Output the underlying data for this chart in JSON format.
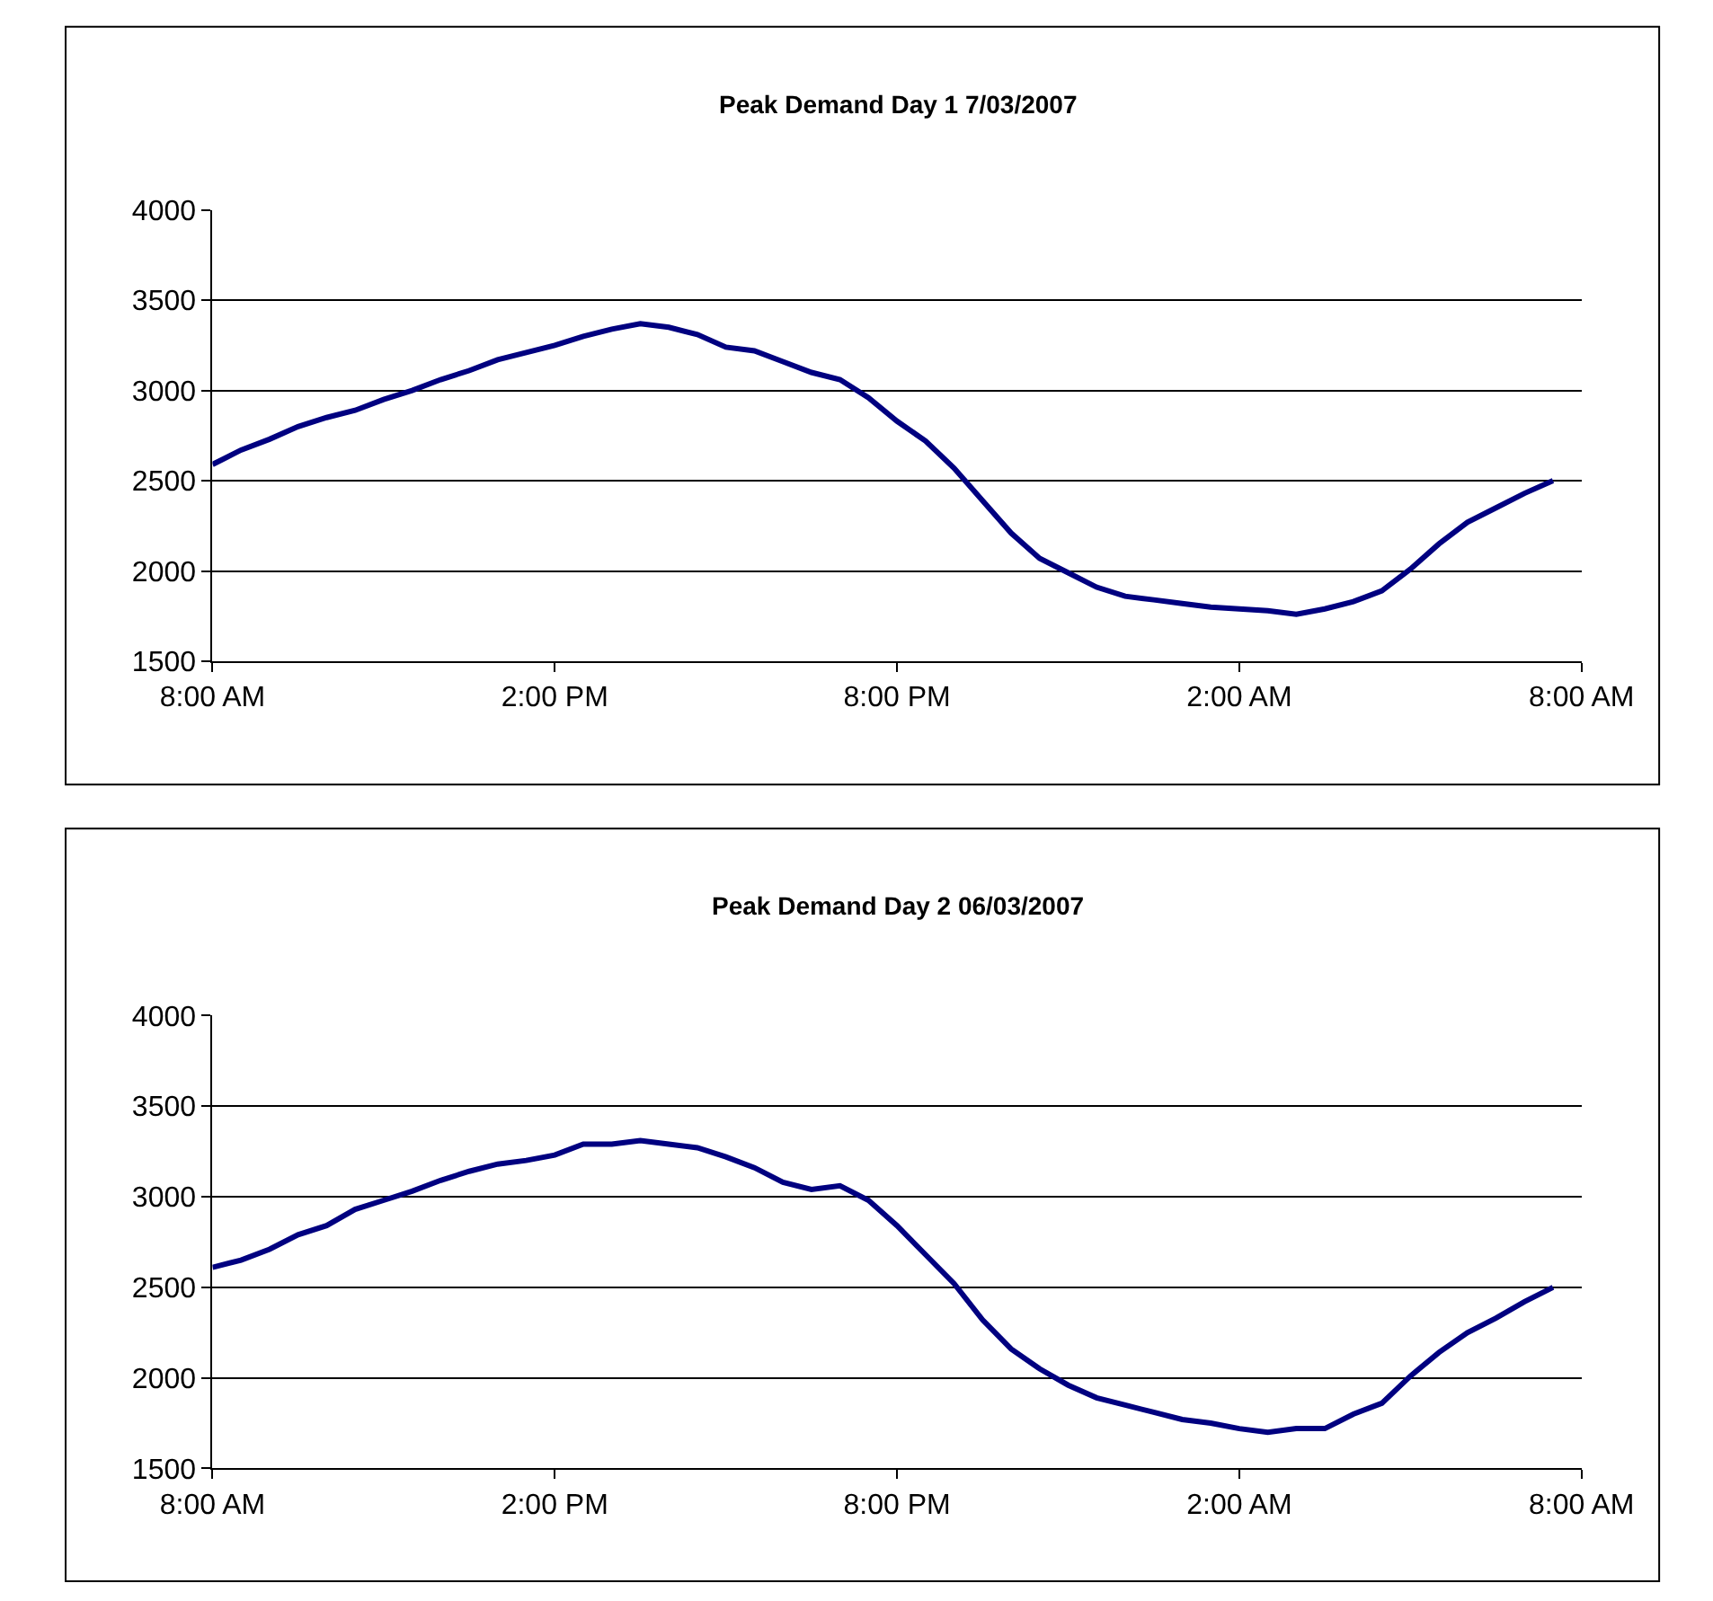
{
  "chart_data": [
    {
      "type": "line",
      "title": "Peak Demand Day 1 7/03/2007",
      "x": [
        "2007-03-07T08:00",
        "2007-03-07T08:30",
        "2007-03-07T09:00",
        "2007-03-07T09:30",
        "2007-03-07T10:00",
        "2007-03-07T10:30",
        "2007-03-07T11:00",
        "2007-03-07T11:30",
        "2007-03-07T12:00",
        "2007-03-07T12:30",
        "2007-03-07T13:00",
        "2007-03-07T13:30",
        "2007-03-07T14:00",
        "2007-03-07T14:30",
        "2007-03-07T15:00",
        "2007-03-07T15:30",
        "2007-03-07T16:00",
        "2007-03-07T16:30",
        "2007-03-07T17:00",
        "2007-03-07T17:30",
        "2007-03-07T18:00",
        "2007-03-07T18:30",
        "2007-03-07T19:00",
        "2007-03-07T19:30",
        "2007-03-07T20:00",
        "2007-03-07T20:30",
        "2007-03-07T21:00",
        "2007-03-07T21:30",
        "2007-03-07T22:00",
        "2007-03-07T22:30",
        "2007-03-07T23:00",
        "2007-03-07T23:30",
        "2007-03-08T00:00",
        "2007-03-08T00:30",
        "2007-03-08T01:00",
        "2007-03-08T01:30",
        "2007-03-08T02:00",
        "2007-03-08T02:30",
        "2007-03-08T03:00",
        "2007-03-08T03:30",
        "2007-03-08T04:00",
        "2007-03-08T04:30",
        "2007-03-08T05:00",
        "2007-03-08T05:30",
        "2007-03-08T06:00",
        "2007-03-08T06:30",
        "2007-03-08T07:00",
        "2007-03-08T07:30"
      ],
      "series": [
        {
          "color": "#000080",
          "values": [
            2590,
            2670,
            2730,
            2800,
            2850,
            2890,
            2950,
            3000,
            3060,
            3110,
            3170,
            3210,
            3250,
            3300,
            3340,
            3370,
            3350,
            3310,
            3240,
            3220,
            3160,
            3100,
            3060,
            2960,
            2830,
            2720,
            2570,
            2390,
            2210,
            2070,
            1990,
            1910,
            1860,
            1840,
            1820,
            1800,
            1790,
            1780,
            1760,
            1790,
            1830,
            1890,
            2010,
            2150,
            2270,
            2350,
            2430,
            2500
          ]
        }
      ],
      "xlim": [
        "2007-03-07T08:00",
        "2007-03-08T08:00"
      ],
      "xticks": [
        {
          "value": "2007-03-07T08:00",
          "label": "8:00 AM"
        },
        {
          "value": "2007-03-07T14:00",
          "label": "2:00 PM"
        },
        {
          "value": "2007-03-07T20:00",
          "label": "8:00 PM"
        },
        {
          "value": "2007-03-08T02:00",
          "label": "2:00 AM"
        },
        {
          "value": "2007-03-08T08:00",
          "label": "8:00 AM"
        }
      ],
      "ylim": [
        1500,
        4000
      ],
      "yticks": [
        1500,
        2000,
        2500,
        3000,
        3500,
        4000
      ],
      "grid": "y",
      "marker": "none",
      "line_style": "solid"
    },
    {
      "type": "line",
      "title": "Peak Demand Day 2 06/03/2007",
      "x": [
        "2007-03-06T08:00",
        "2007-03-06T08:30",
        "2007-03-06T09:00",
        "2007-03-06T09:30",
        "2007-03-06T10:00",
        "2007-03-06T10:30",
        "2007-03-06T11:00",
        "2007-03-06T11:30",
        "2007-03-06T12:00",
        "2007-03-06T12:30",
        "2007-03-06T13:00",
        "2007-03-06T13:30",
        "2007-03-06T14:00",
        "2007-03-06T14:30",
        "2007-03-06T15:00",
        "2007-03-06T15:30",
        "2007-03-06T16:00",
        "2007-03-06T16:30",
        "2007-03-06T17:00",
        "2007-03-06T17:30",
        "2007-03-06T18:00",
        "2007-03-06T18:30",
        "2007-03-06T19:00",
        "2007-03-06T19:30",
        "2007-03-06T20:00",
        "2007-03-06T20:30",
        "2007-03-06T21:00",
        "2007-03-06T21:30",
        "2007-03-06T22:00",
        "2007-03-06T22:30",
        "2007-03-06T23:00",
        "2007-03-06T23:30",
        "2007-03-07T00:00",
        "2007-03-07T00:30",
        "2007-03-07T01:00",
        "2007-03-07T01:30",
        "2007-03-07T02:00",
        "2007-03-07T02:30",
        "2007-03-07T03:00",
        "2007-03-07T03:30",
        "2007-03-07T04:00",
        "2007-03-07T04:30",
        "2007-03-07T05:00",
        "2007-03-07T05:30",
        "2007-03-07T06:00",
        "2007-03-07T06:30",
        "2007-03-07T07:00",
        "2007-03-07T07:30"
      ],
      "series": [
        {
          "color": "#000080",
          "values": [
            2610,
            2650,
            2710,
            2790,
            2840,
            2930,
            2980,
            3030,
            3090,
            3140,
            3180,
            3200,
            3230,
            3290,
            3290,
            3310,
            3290,
            3270,
            3220,
            3160,
            3080,
            3040,
            3060,
            2980,
            2840,
            2680,
            2520,
            2320,
            2160,
            2050,
            1960,
            1890,
            1850,
            1810,
            1770,
            1750,
            1720,
            1700,
            1720,
            1720,
            1800,
            1860,
            2010,
            2140,
            2250,
            2330,
            2420,
            2500
          ]
        }
      ],
      "xlim": [
        "2007-03-06T08:00",
        "2007-03-07T08:00"
      ],
      "xticks": [
        {
          "value": "2007-03-06T08:00",
          "label": "8:00 AM"
        },
        {
          "value": "2007-03-06T14:00",
          "label": "2:00 PM"
        },
        {
          "value": "2007-03-06T20:00",
          "label": "8:00 PM"
        },
        {
          "value": "2007-03-07T02:00",
          "label": "2:00 AM"
        },
        {
          "value": "2007-03-07T08:00",
          "label": "8:00 AM"
        }
      ],
      "ylim": [
        1500,
        4000
      ],
      "yticks": [
        1500,
        2000,
        2500,
        3000,
        3500,
        4000
      ],
      "grid": "y",
      "marker": "none",
      "line_style": "solid"
    }
  ]
}
